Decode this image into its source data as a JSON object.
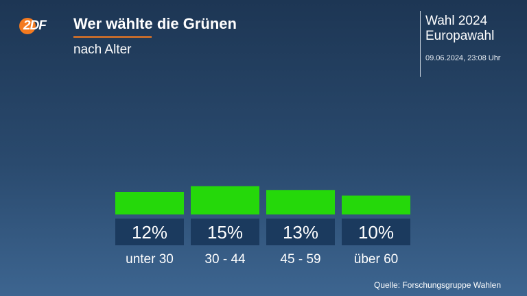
{
  "brand": {
    "logo_text": "2DF",
    "logo_color": "#f47a1f"
  },
  "header": {
    "title": "Wer wählte die Grünen",
    "subtitle": "nach Alter",
    "accent_color": "#f47a1f"
  },
  "election": {
    "line1": "Wahl 2024",
    "line2": "Europawahl",
    "datetime": "09.06.2024, 23:08 Uhr"
  },
  "source": "Quelle: Forschungsgruppe Wahlen",
  "chart_data": {
    "type": "bar",
    "title": "Wer wählte die Grünen",
    "subtitle": "nach Alter",
    "categories": [
      "unter 30",
      "30 - 44",
      "45 - 59",
      "über 60"
    ],
    "values": [
      12,
      15,
      13,
      10
    ],
    "value_labels": [
      "12%",
      "15%",
      "13%",
      "10%"
    ],
    "unit": "%",
    "bar_color": "#25d80a",
    "label_box_color": "#1b3a5e",
    "grid": false,
    "legend": "none"
  }
}
